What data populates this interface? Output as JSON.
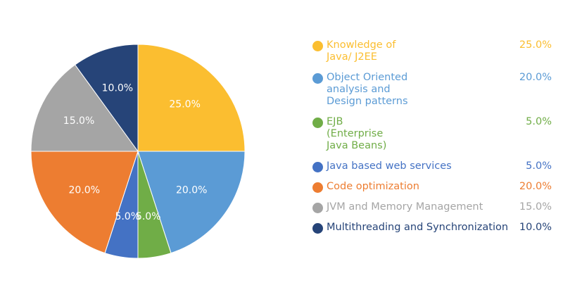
{
  "chart_data": {
    "type": "pie",
    "categories": [
      "Knowledge of\n Java/ J2EE",
      "Object Oriented\nanalysis and\nDesign patterns",
      "EJB\n(Enterprise\nJava Beans)",
      "Java based web services",
      "Code optimization",
      "JVM and Memory Management",
      "Multithreading and Synchronization"
    ],
    "values": [
      25,
      20,
      5,
      5,
      20,
      15,
      10
    ],
    "value_labels": [
      "25.0%",
      "20.0%",
      "5.0%",
      "5.0%",
      "20.0%",
      "15.0%",
      "10.0%"
    ],
    "colors": [
      "#fbbe30",
      "#5b9bd5",
      "#70ad47",
      "#4472c4",
      "#ed7d31",
      "#a5a5a5",
      "#264478"
    ],
    "title": "",
    "legend_position": "right"
  }
}
